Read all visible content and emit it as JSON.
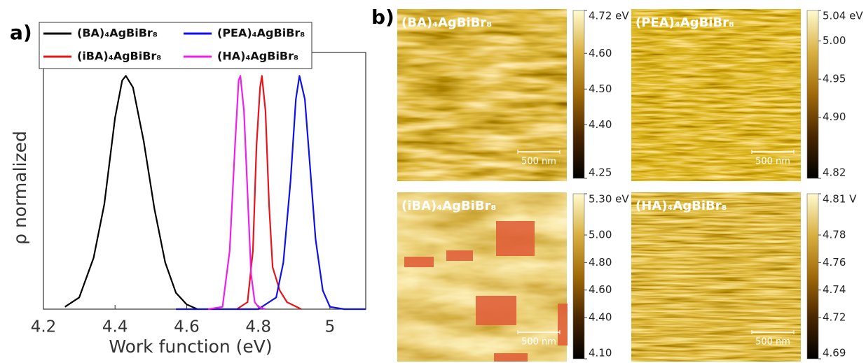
{
  "panel_labels": [
    "a)",
    "b)"
  ],
  "chart_data": {
    "type": "line",
    "xlabel": "Work function (eV)",
    "ylabel": "ρ normalized",
    "xlim": [
      4.2,
      5.1
    ],
    "xticks": [
      4.2,
      4.4,
      4.6,
      4.8,
      5
    ],
    "ylim": [
      0,
      1.1
    ],
    "series": [
      {
        "name": "(BA)₄AgBiBr₈",
        "color": "#000000",
        "x": [
          4.26,
          4.3,
          4.34,
          4.37,
          4.4,
          4.42,
          4.43,
          4.45,
          4.48,
          4.51,
          4.54,
          4.57,
          4.6,
          4.63
        ],
        "values": [
          0.01,
          0.05,
          0.22,
          0.45,
          0.82,
          0.98,
          1.0,
          0.95,
          0.72,
          0.43,
          0.2,
          0.07,
          0.02,
          0.0
        ]
      },
      {
        "name": "(iBA)₄AgBiBr₈",
        "color": "#e8141b",
        "x": [
          4.74,
          4.77,
          4.785,
          4.795,
          4.805,
          4.81,
          4.82,
          4.83,
          4.84,
          4.86,
          4.88,
          4.92
        ],
        "values": [
          0.0,
          0.03,
          0.25,
          0.7,
          0.95,
          1.0,
          0.85,
          0.45,
          0.18,
          0.08,
          0.03,
          0.0
        ]
      },
      {
        "name": "(PEA)₄AgBiBr₈",
        "color": "#1010e8",
        "x": [
          4.57,
          4.8,
          4.85,
          4.87,
          4.89,
          4.905,
          4.915,
          4.93,
          4.945,
          4.96,
          4.98,
          5.0,
          5.04,
          5.1
        ],
        "values": [
          0.0,
          0.0,
          0.05,
          0.2,
          0.55,
          0.9,
          1.0,
          0.9,
          0.6,
          0.3,
          0.08,
          0.01,
          0.0,
          0.0
        ]
      },
      {
        "name": "(HA)₄AgBiBr₈",
        "color": "#ee1fee",
        "x": [
          4.66,
          4.7,
          4.72,
          4.735,
          4.745,
          4.75,
          4.76,
          4.77,
          4.78,
          4.79,
          4.8,
          4.82
        ],
        "values": [
          0.0,
          0.01,
          0.25,
          0.7,
          0.98,
          1.0,
          0.85,
          0.5,
          0.15,
          0.03,
          0.01,
          0.0
        ]
      }
    ]
  },
  "colormap": [
    "#000000",
    "#4a2600",
    "#a06a08",
    "#d9b040",
    "#fffbd0"
  ],
  "maps": [
    {
      "title": "(BA)₄AgBiBr₈",
      "scale_bar": "500 nm",
      "clim": [
        4.25,
        4.72
      ],
      "colorbar_ticks": [
        {
          "value": 4.72,
          "label": "4.72 eV"
        },
        {
          "value": 4.6,
          "label": "4.60"
        },
        {
          "value": 4.5,
          "label": "4.50"
        },
        {
          "value": 4.4,
          "label": "4.40"
        },
        4.25
      ]
    },
    {
      "title": "(PEA)₄AgBiBr₈",
      "scale_bar": "500 nm",
      "clim": [
        4.82,
        5.04
      ],
      "colorbar_ticks": [
        {
          "value": 5.04,
          "label": "5.04 eV"
        },
        {
          "value": 5,
          "label": "5.00"
        },
        4.95,
        {
          "value": 4.9,
          "label": "4.90"
        },
        4.82
      ]
    },
    {
      "title": "(iBA)₄AgBiBr₈",
      "scale_bar": "500 nm",
      "clim": [
        4.1,
        5.3
      ],
      "colorbar_ticks": [
        {
          "value": 5.3,
          "label": "5.30 eV"
        },
        {
          "value": 5,
          "label": "5.00"
        },
        {
          "value": 4.8,
          "label": "4.80"
        },
        {
          "value": 4.6,
          "label": "4.60"
        },
        {
          "value": 4.4,
          "label": "4.40"
        },
        {
          "value": 4.1,
          "label": "4.10"
        }
      ]
    },
    {
      "title": "(HA)₄AgBiBr₈",
      "scale_bar": "500 nm",
      "clim": [
        4.69,
        4.81
      ],
      "colorbar_ticks": [
        {
          "value": 4.81,
          "label": "4.81 V"
        },
        4.78,
        4.76,
        4.74,
        4.72,
        4.69
      ]
    }
  ]
}
